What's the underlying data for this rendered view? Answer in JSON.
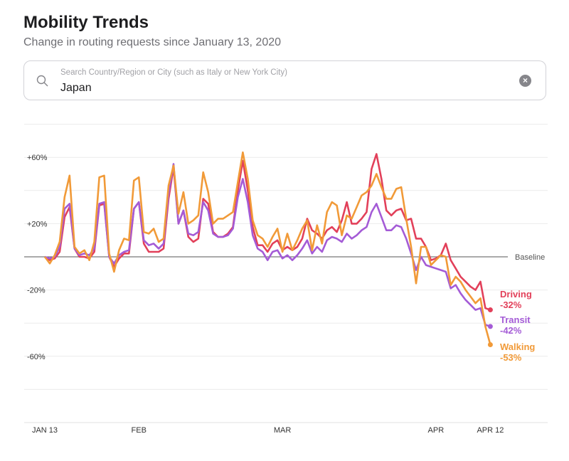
{
  "header": {
    "title": "Mobility Trends",
    "subtitle": "Change in routing requests since January 13, 2020"
  },
  "search": {
    "placeholder": "Search Country/Region or City (such as Italy or New York City)",
    "value": "Japan",
    "icon": "search-icon",
    "clear_icon": "clear-icon"
  },
  "chart_data": {
    "type": "line",
    "ylim": [
      -100,
      80
    ],
    "yticks": [
      {
        "value": 60,
        "label": "+60%"
      },
      {
        "value": 20,
        "label": "+20%"
      },
      {
        "value": -20,
        "label": "-20%"
      },
      {
        "value": -60,
        "label": "-60%"
      }
    ],
    "grid": true,
    "grid_values": [
      80,
      60,
      40,
      20,
      -20,
      -40,
      -60,
      -80
    ],
    "baseline": {
      "value": 0,
      "label": "Baseline"
    },
    "xticks": [
      {
        "date": "2020-01-13",
        "label": "JAN 13"
      },
      {
        "date": "2020-02-01",
        "label": "FEB"
      },
      {
        "date": "2020-03-01",
        "label": "MAR"
      },
      {
        "date": "2020-04-01",
        "label": "APR"
      },
      {
        "date": "2020-04-12",
        "label": "APR 12"
      }
    ],
    "x": [
      "2020-01-13",
      "2020-01-14",
      "2020-01-15",
      "2020-01-16",
      "2020-01-17",
      "2020-01-18",
      "2020-01-19",
      "2020-01-20",
      "2020-01-21",
      "2020-01-22",
      "2020-01-23",
      "2020-01-24",
      "2020-01-25",
      "2020-01-26",
      "2020-01-27",
      "2020-01-28",
      "2020-01-29",
      "2020-01-30",
      "2020-01-31",
      "2020-02-01",
      "2020-02-02",
      "2020-02-03",
      "2020-02-04",
      "2020-02-05",
      "2020-02-06",
      "2020-02-07",
      "2020-02-08",
      "2020-02-09",
      "2020-02-10",
      "2020-02-11",
      "2020-02-12",
      "2020-02-13",
      "2020-02-14",
      "2020-02-15",
      "2020-02-16",
      "2020-02-17",
      "2020-02-18",
      "2020-02-19",
      "2020-02-20",
      "2020-02-21",
      "2020-02-22",
      "2020-02-23",
      "2020-02-24",
      "2020-02-25",
      "2020-02-26",
      "2020-02-27",
      "2020-02-28",
      "2020-02-29",
      "2020-03-01",
      "2020-03-02",
      "2020-03-03",
      "2020-03-04",
      "2020-03-05",
      "2020-03-06",
      "2020-03-07",
      "2020-03-08",
      "2020-03-09",
      "2020-03-10",
      "2020-03-11",
      "2020-03-12",
      "2020-03-13",
      "2020-03-14",
      "2020-03-15",
      "2020-03-16",
      "2020-03-17",
      "2020-03-18",
      "2020-03-19",
      "2020-03-20",
      "2020-03-21",
      "2020-03-22",
      "2020-03-23",
      "2020-03-24",
      "2020-03-25",
      "2020-03-26",
      "2020-03-27",
      "2020-03-28",
      "2020-03-29",
      "2020-03-30",
      "2020-03-31",
      "2020-04-01",
      "2020-04-02",
      "2020-04-03",
      "2020-04-04",
      "2020-04-05",
      "2020-04-06",
      "2020-04-07",
      "2020-04-08",
      "2020-04-09",
      "2020-04-10",
      "2020-04-11",
      "2020-04-12"
    ],
    "series": [
      {
        "name": "Driving",
        "final_label": "-32%",
        "color": "#e2405a",
        "values": [
          0,
          -2,
          -1,
          3,
          24,
          30,
          5,
          0,
          0,
          -1,
          3,
          31,
          32,
          0,
          -6,
          -1,
          2,
          2,
          29,
          33,
          8,
          3,
          3,
          3,
          5,
          35,
          54,
          20,
          28,
          12,
          9,
          11,
          35,
          32,
          15,
          12,
          12,
          14,
          18,
          40,
          58,
          40,
          18,
          7,
          7,
          3,
          8,
          10,
          4,
          6,
          4,
          6,
          11,
          23,
          16,
          14,
          11,
          16,
          18,
          15,
          22,
          33,
          20,
          20,
          23,
          27,
          53,
          62,
          47,
          28,
          25,
          28,
          29,
          22,
          23,
          11,
          11,
          6,
          -2,
          -1,
          1,
          8,
          -2,
          -7,
          -12,
          -15,
          -18,
          -20,
          -15,
          -31,
          -32
        ]
      },
      {
        "name": "Transit",
        "final_label": "-42%",
        "color": "#a45bd6",
        "values": [
          0,
          -1,
          0,
          6,
          29,
          32,
          5,
          1,
          2,
          1,
          5,
          32,
          33,
          0,
          -4,
          1,
          3,
          4,
          29,
          33,
          10,
          7,
          8,
          5,
          8,
          38,
          56,
          20,
          28,
          14,
          13,
          15,
          33,
          28,
          14,
          12,
          12,
          13,
          17,
          36,
          47,
          33,
          13,
          5,
          3,
          -2,
          3,
          4,
          -1,
          1,
          -2,
          1,
          5,
          10,
          2,
          6,
          3,
          10,
          12,
          11,
          9,
          14,
          11,
          13,
          16,
          18,
          27,
          32,
          24,
          16,
          16,
          19,
          18,
          11,
          2,
          -8,
          0,
          -5,
          -6,
          -7,
          -8,
          -9,
          -19,
          -17,
          -22,
          -26,
          -29,
          -32,
          -31,
          -41,
          -42
        ]
      },
      {
        "name": "Walking",
        "final_label": "-53%",
        "color": "#f19a38",
        "values": [
          0,
          -4,
          1,
          9,
          36,
          49,
          6,
          2,
          4,
          -2,
          9,
          48,
          49,
          2,
          -9,
          4,
          11,
          10,
          46,
          48,
          15,
          14,
          17,
          9,
          11,
          43,
          55,
          26,
          39,
          20,
          22,
          25,
          51,
          39,
          20,
          23,
          23,
          25,
          27,
          45,
          63,
          47,
          22,
          13,
          11,
          6,
          12,
          17,
          3,
          14,
          4,
          10,
          17,
          22,
          4,
          19,
          8,
          27,
          33,
          31,
          13,
          25,
          23,
          30,
          37,
          39,
          43,
          50,
          42,
          35,
          35,
          41,
          42,
          23,
          6,
          -16,
          6,
          6,
          -5,
          -2,
          1,
          0,
          -17,
          -12,
          -15,
          -20,
          -24,
          -28,
          -25,
          -42,
          -53
        ]
      }
    ]
  }
}
